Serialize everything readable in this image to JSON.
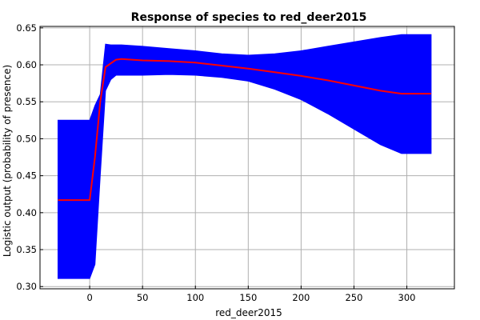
{
  "chart_data": {
    "type": "area",
    "title": "Response of species to red_deer2015",
    "xlabel": "red_deer2015",
    "ylabel": "Logistic output (probability of presence)",
    "xlim": [
      -47,
      345
    ],
    "ylim": [
      0.297,
      0.652
    ],
    "xticks": [
      0,
      50,
      100,
      150,
      200,
      250,
      300
    ],
    "yticks": [
      0.3,
      0.35,
      0.4,
      0.45,
      0.5,
      0.55,
      0.6,
      0.65
    ],
    "xtick_labels": [
      "0",
      "50",
      "100",
      "150",
      "200",
      "250",
      "300"
    ],
    "ytick_labels": [
      "0.30",
      "0.35",
      "0.40",
      "0.45",
      "0.50",
      "0.55",
      "0.60",
      "0.65"
    ],
    "grid": true,
    "colors": {
      "mean": "#ff0000",
      "band": "#0000ff",
      "grid": "#b0b0b0"
    },
    "series": [
      {
        "x": [
          -30,
          0,
          5,
          10,
          15,
          20,
          25,
          30,
          40,
          50,
          75,
          100,
          125,
          150,
          175,
          200,
          225,
          250,
          275,
          295,
          323
        ],
        "values": [
          0.417,
          0.417,
          0.475,
          0.55,
          0.597,
          0.602,
          0.607,
          0.608,
          0.607,
          0.606,
          0.605,
          0.603,
          0.599,
          0.595,
          0.59,
          0.585,
          0.579,
          0.572,
          0.565,
          0.561,
          0.561
        ]
      },
      {
        "x": [
          -30,
          0,
          5,
          10,
          15,
          20,
          25,
          30,
          40,
          50,
          75,
          100,
          125,
          150,
          175,
          200,
          225,
          250,
          275,
          295,
          323
        ],
        "values": [
          0.525,
          0.525,
          0.545,
          0.56,
          0.628,
          0.627,
          0.627,
          0.627,
          0.626,
          0.625,
          0.622,
          0.619,
          0.615,
          0.613,
          0.615,
          0.619,
          0.625,
          0.631,
          0.637,
          0.641,
          0.641
        ]
      },
      {
        "x": [
          -30,
          0,
          5,
          10,
          15,
          20,
          25,
          30,
          40,
          50,
          75,
          100,
          125,
          150,
          175,
          200,
          225,
          250,
          275,
          295,
          323
        ],
        "values": [
          0.311,
          0.311,
          0.33,
          0.45,
          0.565,
          0.58,
          0.586,
          0.586,
          0.586,
          0.586,
          0.587,
          0.586,
          0.583,
          0.578,
          0.567,
          0.553,
          0.534,
          0.513,
          0.492,
          0.48,
          0.48
        ]
      }
    ]
  }
}
